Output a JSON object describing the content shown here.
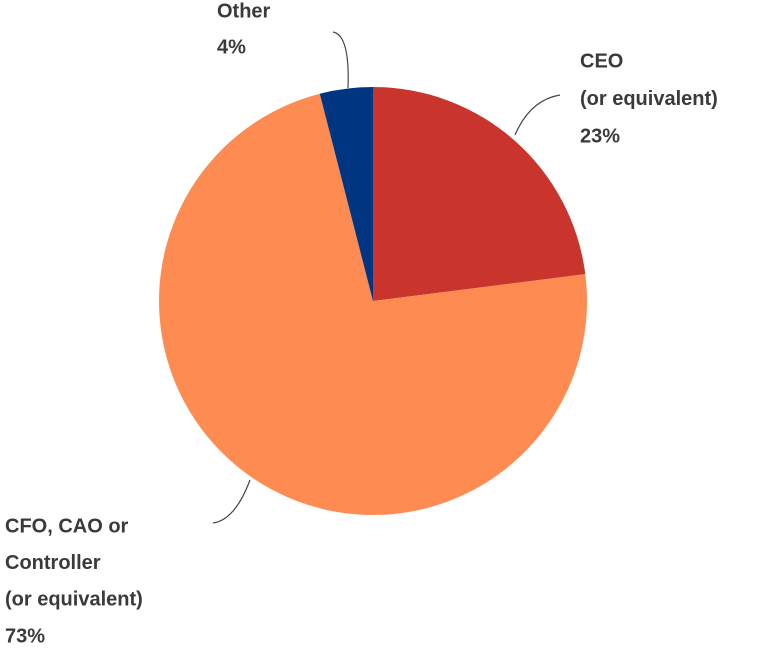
{
  "chart_data": {
    "type": "pie",
    "categories": [
      [
        "CEO",
        "(or equivalent)"
      ],
      [
        "CFO, CAO or",
        "Controller",
        "(or equivalent)"
      ],
      [
        "Other"
      ]
    ],
    "values": [
      23,
      73,
      4
    ],
    "value_labels": [
      "23%",
      "73%",
      "4%"
    ],
    "colors": [
      "#c9352d",
      "#fe8b52",
      "#003681"
    ]
  }
}
